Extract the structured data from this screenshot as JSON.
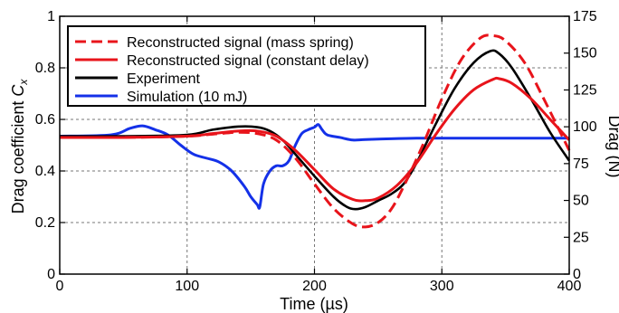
{
  "chart_data": {
    "type": "line",
    "title": "",
    "xlabel": "Time (µs)",
    "ylabel_left_main": "Drag coefficient ",
    "ylabel_left_italic": "C",
    "ylabel_left_sub": "x",
    "ylabel_right": "Drag (N)",
    "xlim": [
      0,
      400
    ],
    "ylim_left": [
      0,
      1
    ],
    "ylim_right": [
      0,
      175
    ],
    "x_ticks": [
      0,
      100,
      200,
      300,
      400
    ],
    "x_tick_labels": [
      "0",
      "100",
      "200",
      "300",
      "400"
    ],
    "y_left_ticks": [
      0,
      0.2,
      0.4,
      0.6,
      0.8,
      1
    ],
    "y_left_tick_labels": [
      "0",
      "0.2",
      "0.4",
      "0.6",
      "0.8",
      "1"
    ],
    "y_right_ticks": [
      0,
      25,
      50,
      75,
      100,
      125,
      150,
      175
    ],
    "y_right_tick_labels": [
      "0",
      "25",
      "50",
      "75",
      "100",
      "125",
      "150",
      "175"
    ],
    "grid": true,
    "legend_position": "top-left",
    "series": [
      {
        "name": "Reconstructed signal (mass spring)",
        "color": "#e8141b",
        "dash": "dashed",
        "x": [
          0,
          50,
          100,
          125,
          140,
          155,
          170,
          185,
          200,
          215,
          230,
          240,
          250,
          260,
          270,
          285,
          300,
          315,
          330,
          340,
          350,
          365,
          380,
          390,
          400
        ],
        "y": [
          0.53,
          0.53,
          0.535,
          0.545,
          0.55,
          0.545,
          0.52,
          0.45,
          0.35,
          0.255,
          0.195,
          0.183,
          0.2,
          0.25,
          0.34,
          0.5,
          0.68,
          0.83,
          0.915,
          0.925,
          0.905,
          0.82,
          0.68,
          0.58,
          0.48
        ]
      },
      {
        "name": "Reconstructed signal (constant delay)",
        "color": "#e8141b",
        "dash": "solid",
        "x": [
          0,
          50,
          100,
          120,
          140,
          155,
          170,
          185,
          200,
          215,
          230,
          240,
          250,
          265,
          280,
          295,
          310,
          325,
          340,
          345,
          355,
          370,
          385,
          400
        ],
        "y": [
          0.53,
          0.53,
          0.535,
          0.545,
          0.555,
          0.555,
          0.535,
          0.48,
          0.405,
          0.33,
          0.29,
          0.285,
          0.295,
          0.345,
          0.43,
          0.54,
          0.64,
          0.715,
          0.755,
          0.758,
          0.74,
          0.68,
          0.6,
          0.52
        ]
      },
      {
        "name": "Experiment",
        "color": "#000000",
        "dash": "solid",
        "x": [
          0,
          50,
          100,
          120,
          140,
          155,
          165,
          175,
          185,
          200,
          215,
          225,
          232,
          240,
          250,
          260,
          270,
          280,
          295,
          310,
          325,
          338,
          345,
          355,
          370,
          385,
          400
        ],
        "y": [
          0.535,
          0.535,
          0.54,
          0.56,
          0.572,
          0.57,
          0.555,
          0.52,
          0.465,
          0.38,
          0.3,
          0.262,
          0.252,
          0.26,
          0.285,
          0.31,
          0.35,
          0.43,
          0.58,
          0.72,
          0.82,
          0.865,
          0.855,
          0.8,
          0.68,
          0.55,
          0.44
        ]
      },
      {
        "name": "Simulation (10 mJ)",
        "color": "#1431e8",
        "dash": "solid",
        "x": [
          0,
          40,
          55,
          65,
          75,
          85,
          95,
          105,
          115,
          125,
          135,
          145,
          150,
          155,
          157,
          160,
          165,
          170,
          175,
          180,
          185,
          190,
          195,
          200,
          203,
          206,
          210,
          220,
          230,
          240,
          260,
          280,
          300,
          350,
          400
        ],
        "y": [
          0.535,
          0.54,
          0.565,
          0.575,
          0.56,
          0.54,
          0.5,
          0.465,
          0.45,
          0.435,
          0.4,
          0.34,
          0.3,
          0.27,
          0.26,
          0.35,
          0.4,
          0.42,
          0.42,
          0.44,
          0.5,
          0.545,
          0.56,
          0.57,
          0.58,
          0.56,
          0.54,
          0.53,
          0.52,
          0.522,
          0.525,
          0.527,
          0.527,
          0.527,
          0.527
        ]
      }
    ]
  }
}
